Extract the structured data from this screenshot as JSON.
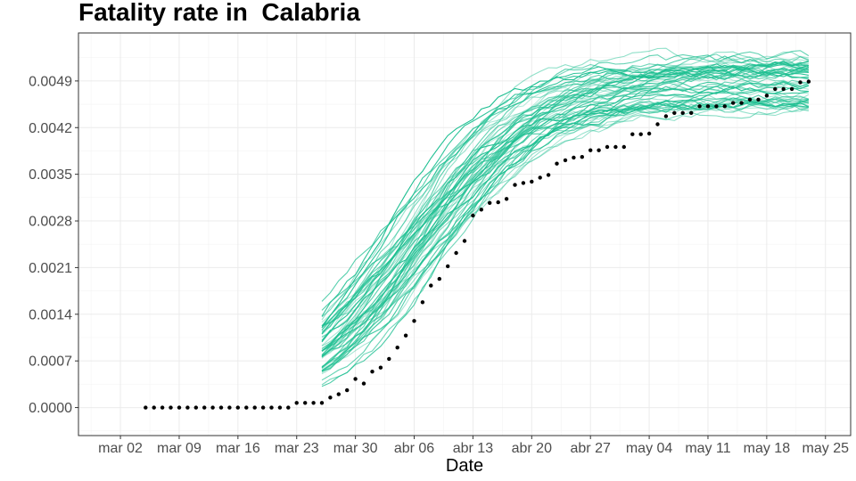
{
  "chart_data": {
    "type": "line",
    "title": "Fatality rate in  Calabria",
    "xlabel": "Date",
    "ylabel": "",
    "x_ticks": [
      "mar 02",
      "mar 09",
      "mar 16",
      "mar 23",
      "mar 30",
      "abr 06",
      "abr 13",
      "abr 20",
      "abr 27",
      "may 04",
      "may 11",
      "may 18",
      "may 25"
    ],
    "y_ticks": [
      "0.0000",
      "0.0007",
      "0.0014",
      "0.0021",
      "0.0028",
      "0.0035",
      "0.0042",
      "0.0049"
    ],
    "ylim": [
      -0.00042,
      0.00562
    ],
    "grid": true,
    "legend": "none",
    "colors": {
      "simulations": "#1dbf91",
      "observed": "#000000",
      "grid": "#ebebeb",
      "panel_border": "#333333"
    },
    "observed": {
      "x_start": "2020-03-05",
      "x_end": "2020-05-23",
      "values": [
        0,
        0,
        0,
        0,
        0,
        0,
        0,
        0,
        0,
        0,
        0,
        0,
        0,
        0,
        0,
        0,
        0,
        0,
        7e-05,
        7e-05,
        7e-05,
        7e-05,
        0.00015,
        0.0002,
        0.00026,
        0.00043,
        0.00036,
        0.00054,
        0.0006,
        0.00073,
        0.0009,
        0.00108,
        0.0013,
        0.00158,
        0.00183,
        0.00193,
        0.00212,
        0.00232,
        0.0025,
        0.00288,
        0.00297,
        0.00307,
        0.00308,
        0.00313,
        0.00334,
        0.00337,
        0.00339,
        0.00345,
        0.00349,
        0.00366,
        0.00371,
        0.00375,
        0.00376,
        0.00386,
        0.00386,
        0.00391,
        0.00391,
        0.00391,
        0.0041,
        0.0041,
        0.00411,
        0.00425,
        0.00437,
        0.00442,
        0.00442,
        0.00442,
        0.00452,
        0.00452,
        0.00452,
        0.00452,
        0.00457,
        0.00457,
        0.00462,
        0.00462,
        0.00468,
        0.00478,
        0.00478,
        0.00478,
        0.00488,
        0.00489
      ]
    },
    "simulations": {
      "count": 60,
      "description_source": "green simulated trajectories",
      "x_start": "2020-03-26",
      "x_end": "2020-05-23",
      "final_range": [
        0.0045,
        0.0053
      ],
      "midpoint_range": [
        "2020-04-02",
        "2020-04-10"
      ]
    }
  }
}
